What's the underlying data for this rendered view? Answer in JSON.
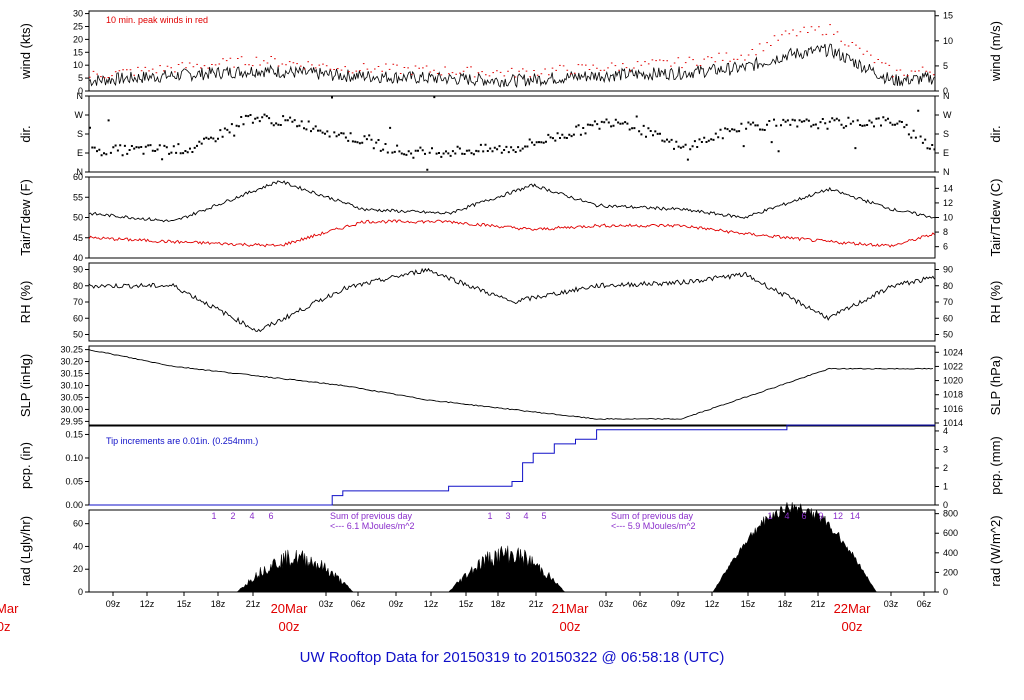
{
  "title": "UW Rooftop Data for 20150319  to  20150322 @ 06:58:18  (UTC)",
  "x_axis": {
    "hours": [
      "09z",
      "12z",
      "15z",
      "18z",
      "21z",
      "03z",
      "06z",
      "09z",
      "12z",
      "15z",
      "18z",
      "21z",
      "03z",
      "06z",
      "09z",
      "12z",
      "15z",
      "18z",
      "21z",
      "03z",
      "06z"
    ],
    "dates": [
      {
        "top": "20Mar",
        "bottom": "00z"
      },
      {
        "top": "20Mar",
        "bottom": "00z"
      },
      {
        "top": "21Mar",
        "bottom": "00z"
      },
      {
        "top": "22Mar",
        "bottom": "00z"
      }
    ]
  },
  "panels": {
    "wind": {
      "ylabel_left": "wind (kts)",
      "ylabel_right": "wind (m/s)",
      "note": "10 min. peak winds in red",
      "left_ticks": [
        "0",
        "5",
        "10",
        "15",
        "20",
        "25",
        "30"
      ],
      "right_ticks": [
        "0",
        "5",
        "10",
        "15"
      ],
      "ylim": [
        0,
        31
      ]
    },
    "dir": {
      "ylabel_left": "dir.",
      "ylabel_right": "dir.",
      "left_ticks": [
        "N",
        "E",
        "S",
        "W",
        "N"
      ],
      "right_ticks": [
        "N",
        "E",
        "S",
        "W",
        "N"
      ]
    },
    "temp": {
      "ylabel_left": "Tair/Tdew (F)",
      "ylabel_right": "Tair/Tdew (C)",
      "left_ticks": [
        "40",
        "45",
        "50",
        "55",
        "60"
      ],
      "right_ticks": [
        "6",
        "8",
        "10",
        "12",
        "14"
      ],
      "ylim": [
        40,
        60
      ]
    },
    "rh": {
      "ylabel_left": "RH (%)",
      "ylabel_right": "RH (%)",
      "left_ticks": [
        "50",
        "60",
        "70",
        "80",
        "90"
      ],
      "right_ticks": [
        "50",
        "60",
        "70",
        "80",
        "90"
      ],
      "ylim": [
        46,
        94
      ]
    },
    "slp": {
      "ylabel_left": "SLP (inHg)",
      "ylabel_right": "SLP (hPa)",
      "left_ticks": [
        "29.95",
        "30.00",
        "30.05",
        "30.10",
        "30.15",
        "30.20",
        "30.25"
      ],
      "right_ticks": [
        "1014",
        "1016",
        "1018",
        "1020",
        "1022",
        "1024"
      ],
      "ylim": [
        29.935,
        30.265
      ]
    },
    "pcp": {
      "ylabel_left": "pcp. (in)",
      "ylabel_right": "pcp. (mm)",
      "note": "Tip increments are 0.01in. (0.254mm.)",
      "left_ticks": [
        "0.00",
        "0.05",
        "0.10",
        "0.15"
      ],
      "right_ticks": [
        "0",
        "1",
        "2",
        "3",
        "4"
      ],
      "ylim": [
        0,
        0.168
      ]
    },
    "rad": {
      "ylabel_left": "rad (Lgly/hr)",
      "ylabel_right": "rad (W/m^2)",
      "left_ticks": [
        "0",
        "20",
        "40",
        "60"
      ],
      "right_ticks": [
        "0",
        "200",
        "400",
        "600",
        "800"
      ],
      "ylim": [
        0,
        72
      ],
      "day1_hours": [
        "1",
        "2",
        "4",
        "6"
      ],
      "day2_hours": [
        "1",
        "3",
        "4",
        "5"
      ],
      "day3_hours": [
        "1",
        "4",
        "6",
        "9",
        "12",
        "14"
      ],
      "sum1": "Sum of previous day",
      "sum1_val": "<--- 6.1 MJoules/m^2",
      "sum2": "Sum of previous day",
      "sum2_val": "<--- 5.9 MJoules/m^2"
    }
  },
  "chart_data": [
    {
      "type": "line",
      "title": "wind",
      "xlabel": "time (UTC)",
      "ylabel": "wind (kts)",
      "series": [
        {
          "name": "10-min mean wind (kts)",
          "x": [
            0,
            8,
            16,
            24,
            32,
            40,
            48,
            56,
            62,
            66,
            70,
            72,
            76,
            80
          ],
          "values": [
            4,
            6,
            8,
            6,
            5,
            4,
            6,
            7,
            9,
            14,
            16,
            12,
            4,
            5
          ]
        },
        {
          "name": "10-min peak wind (kts)",
          "x": [
            0,
            8,
            16,
            24,
            32,
            40,
            48,
            56,
            62,
            66,
            70,
            72,
            76,
            80
          ],
          "values": [
            6,
            9,
            12,
            9,
            8,
            7,
            9,
            11,
            14,
            22,
            24,
            18,
            7,
            8
          ]
        }
      ]
    },
    {
      "type": "scatter",
      "title": "dir.",
      "ylabel": "dir.",
      "series": [
        {
          "name": "wind direction (deg)",
          "x": [
            0,
            10,
            15,
            20,
            30,
            40,
            50,
            56,
            62,
            70,
            76,
            80
          ],
          "values": [
            100,
            110,
            260,
            230,
            90,
            110,
            250,
            110,
            220,
            230,
            240,
            110
          ]
        }
      ]
    },
    {
      "type": "line",
      "title": "Tair/Tdew",
      "ylabel": "Tair/Tdew (F)",
      "series": [
        {
          "name": "Tair (F)",
          "x": [
            0,
            8,
            18,
            26,
            34,
            42,
            48,
            56,
            62,
            70,
            76,
            80
          ],
          "values": [
            51,
            49,
            59,
            52,
            51,
            58,
            53,
            52,
            50,
            57,
            52,
            50
          ]
        },
        {
          "name": "Tdew (F)",
          "x": [
            0,
            8,
            18,
            26,
            34,
            42,
            48,
            56,
            62,
            70,
            76,
            80
          ],
          "values": [
            45,
            44,
            43,
            49,
            49,
            47,
            48,
            48,
            46,
            44,
            43,
            46
          ]
        }
      ]
    },
    {
      "type": "line",
      "title": "RH",
      "ylabel": "RH (%)",
      "series": [
        {
          "name": "RH (%)",
          "x": [
            0,
            8,
            16,
            24,
            32,
            40,
            48,
            56,
            62,
            70,
            76,
            80
          ],
          "values": [
            80,
            80,
            52,
            78,
            90,
            70,
            80,
            82,
            87,
            60,
            80,
            85
          ]
        }
      ]
    },
    {
      "type": "line",
      "title": "SLP",
      "ylabel": "SLP (inHg)",
      "series": [
        {
          "name": "SLP (inHg)",
          "x": [
            0,
            8,
            16,
            24,
            32,
            40,
            48,
            56,
            62,
            70,
            76,
            80
          ],
          "values": [
            30.25,
            30.18,
            30.14,
            30.1,
            30.04,
            30.0,
            29.96,
            29.96,
            30.05,
            30.17,
            30.17,
            30.17
          ]
        }
      ]
    },
    {
      "type": "line",
      "title": "pcp.",
      "ylabel": "pcp. (in)",
      "series": [
        {
          "name": "accumulated precip (in)",
          "x": [
            0,
            22,
            23,
            24,
            34,
            40,
            41,
            42,
            44,
            46,
            48,
            62,
            66,
            80
          ],
          "values": [
            0,
            0,
            0.02,
            0.03,
            0.04,
            0.05,
            0.09,
            0.11,
            0.13,
            0.14,
            0.16,
            0.16,
            0.17,
            0.17
          ]
        }
      ]
    },
    {
      "type": "area",
      "title": "rad",
      "ylabel": "rad (Lgly/hr)",
      "series": [
        {
          "name": "solar radiation (Lgly/hr)",
          "x": [
            7,
            10,
            15,
            18,
            19,
            34,
            39,
            42,
            44,
            60,
            63,
            66,
            67,
            70
          ],
          "values": [
            0,
            18,
            40,
            2,
            0,
            0,
            32,
            15,
            0,
            0,
            70,
            80,
            55,
            0
          ]
        }
      ]
    }
  ]
}
